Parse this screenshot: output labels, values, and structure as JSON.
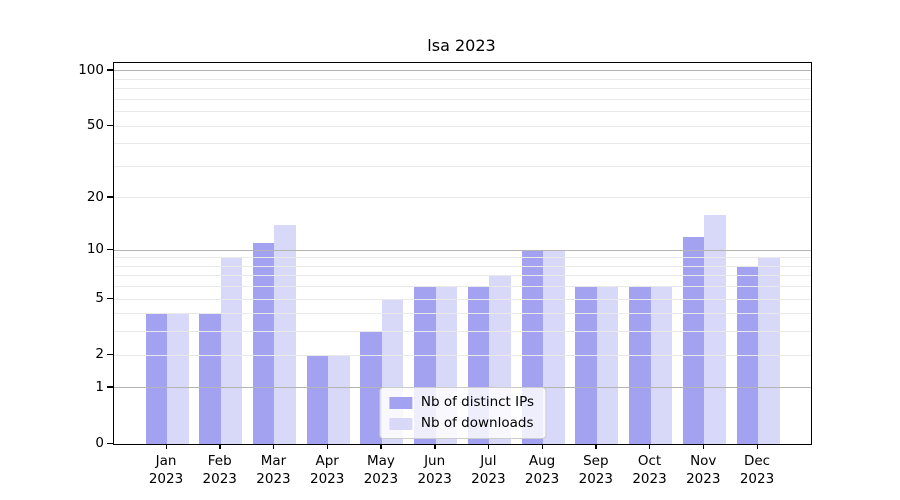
{
  "chart_data": {
    "type": "bar",
    "title": "lsa 2023",
    "categories": [
      "Jan 2023",
      "Feb 2023",
      "Mar 2023",
      "Apr 2023",
      "May 2023",
      "Jun 2023",
      "Jul 2023",
      "Aug 2023",
      "Sep 2023",
      "Oct 2023",
      "Nov 2023",
      "Dec 2023"
    ],
    "series": [
      {
        "name": "Nb of distinct IPs",
        "color": "#a2a2f0",
        "values": [
          4,
          4,
          11,
          2,
          3,
          6,
          6,
          10,
          6,
          6,
          12,
          8
        ]
      },
      {
        "name": "Nb of downloads",
        "color": "#d8d8f8",
        "values": [
          4,
          9,
          14,
          2,
          5,
          6,
          7,
          10,
          6,
          6,
          16,
          9
        ]
      }
    ],
    "xlabel": "",
    "ylabel": "",
    "yscale": "log1p",
    "ylim": [
      0,
      110
    ],
    "yticks_labeled": [
      0,
      1,
      2,
      5,
      10,
      20,
      50,
      100
    ],
    "ygrid_major": [
      1,
      10,
      100
    ],
    "ygrid_minor": [
      2,
      3,
      4,
      5,
      6,
      7,
      8,
      9,
      20,
      30,
      40,
      50,
      60,
      70,
      80,
      90
    ],
    "grid": true,
    "legend_position": "lower center",
    "colors": {
      "grid_major": "#b4b4b4",
      "grid_minor": "#e9e9e9",
      "spine": "#000000",
      "background": "#ffffff"
    }
  }
}
